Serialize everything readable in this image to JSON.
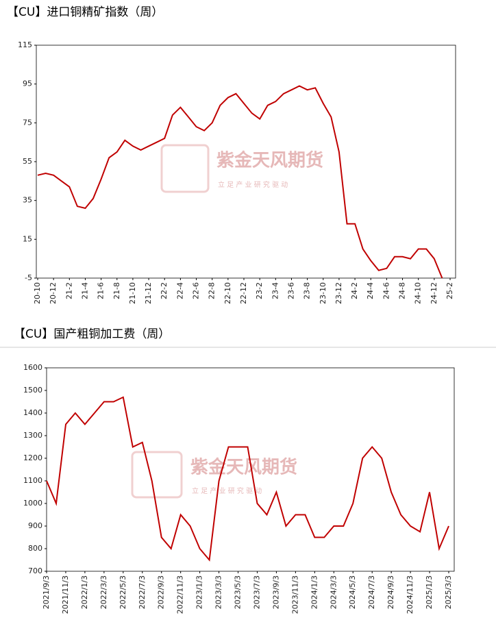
{
  "chart_data": [
    {
      "type": "line",
      "title": "【CU】进口铜精矿指数（周）",
      "watermark": "紫金天风期货",
      "watermark_slogan": "立 足 产 业 研 究 驱 动",
      "categories": [
        "20-10",
        null,
        "20-12",
        null,
        "21-2",
        null,
        "21-4",
        null,
        "21-6",
        null,
        "21-8",
        null,
        "21-10",
        null,
        "21-12",
        null,
        "22-2",
        null,
        "22-4",
        null,
        "22-6",
        null,
        "22-8",
        null,
        "22-10",
        null,
        "22-12",
        null,
        "23-2",
        null,
        "23-4",
        null,
        "23-6",
        null,
        "23-8",
        null,
        "23-10",
        null,
        "23-12",
        null,
        "24-2",
        null,
        "24-4",
        null,
        "24-6",
        null,
        "24-8",
        null,
        "24-10",
        null,
        "24-12",
        null,
        "25-2"
      ],
      "series": [
        {
          "name": "进口铜精矿指数",
          "color": "#c00000",
          "values": [
            48,
            49,
            48,
            45,
            42,
            32,
            31,
            36,
            46,
            57,
            60,
            66,
            63,
            61,
            63,
            65,
            67,
            79,
            83,
            78,
            73,
            71,
            75,
            84,
            88,
            90,
            85,
            80,
            77,
            84,
            86,
            90,
            92,
            94,
            92,
            93,
            85,
            78,
            60,
            23,
            23,
            10,
            4,
            -1,
            0,
            6,
            6,
            5,
            10,
            10,
            5,
            -5,
            null
          ]
        }
      ],
      "ylim": [
        -5,
        115
      ],
      "yticks": [
        -5,
        15,
        35,
        55,
        75,
        95,
        115
      ]
    },
    {
      "type": "line",
      "title": "【CU】国产粗铜加工费（周）",
      "watermark": "紫金天风期货",
      "watermark_slogan": "立 足 产 业 研 究 驱 动",
      "categories": [
        "2021/9/3",
        null,
        "2021/11/3",
        null,
        "2022/1/3",
        null,
        "2022/3/3",
        null,
        "2022/5/3",
        null,
        "2022/7/3",
        null,
        "2022/9/3",
        null,
        "2022/11/3",
        null,
        "2023/1/3",
        null,
        "2023/3/3",
        null,
        "2023/5/3",
        null,
        "2023/7/3",
        null,
        "2023/9/3",
        null,
        "2023/11/3",
        null,
        "2024/1/3",
        null,
        "2024/3/3",
        null,
        "2024/5/3",
        null,
        "2024/7/3",
        null,
        "2024/9/3",
        null,
        "2024/11/3",
        null,
        "2025/1/3",
        null,
        "2025/3/3"
      ],
      "series": [
        {
          "name": "国产粗铜加工费",
          "color": "#c00000",
          "values": [
            1100,
            1000,
            1350,
            1400,
            1350,
            1400,
            1450,
            1450,
            1470,
            1250,
            1270,
            1100,
            850,
            800,
            950,
            900,
            800,
            750,
            1100,
            1250,
            1250,
            1250,
            1000,
            950,
            1050,
            900,
            950,
            950,
            850,
            850,
            900,
            900,
            1000,
            1200,
            1250,
            1200,
            1050,
            950,
            900,
            875,
            1050,
            800,
            900
          ]
        }
      ],
      "ylim": [
        700,
        1600
      ],
      "yticks": [
        700,
        800,
        900,
        1000,
        1100,
        1200,
        1300,
        1400,
        1500,
        1600
      ]
    }
  ]
}
